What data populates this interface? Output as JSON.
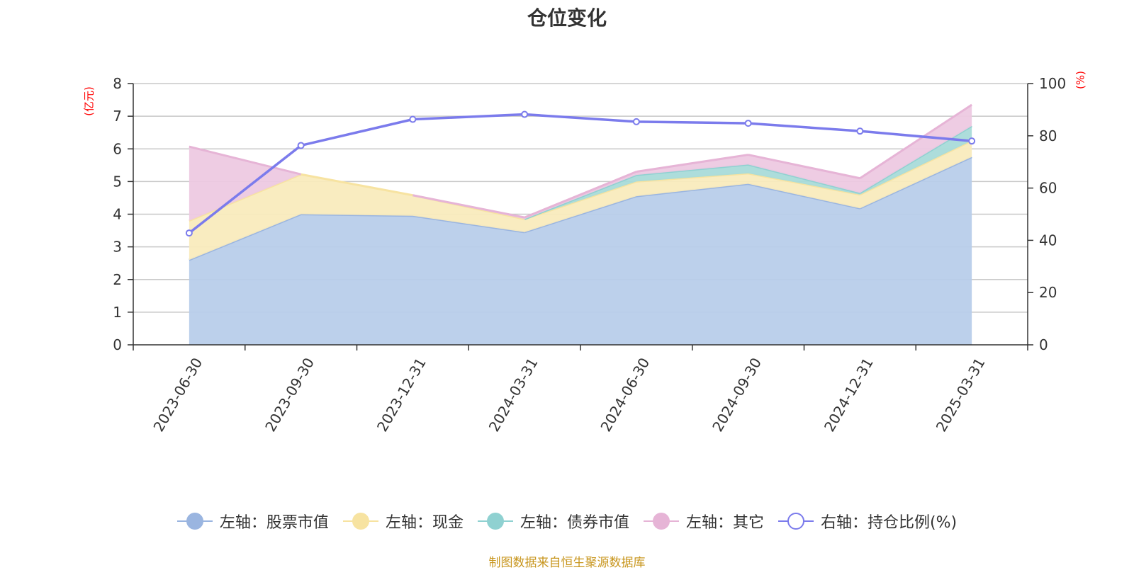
{
  "title": "仓位变化",
  "source_note": "制图数据来自恒生聚源数据库",
  "chart_data": {
    "type": "area",
    "categories": [
      "2023-06-30",
      "2023-09-30",
      "2023-12-31",
      "2024-03-31",
      "2024-06-30",
      "2024-09-30",
      "2024-12-31",
      "2025-03-31"
    ],
    "left_axis": {
      "unit": "(亿元)",
      "range": [
        0,
        8
      ],
      "ticks": [
        0,
        1,
        2,
        3,
        4,
        5,
        6,
        7,
        8
      ]
    },
    "right_axis": {
      "unit": "(%)",
      "range": [
        0,
        100
      ],
      "ticks": [
        0,
        20,
        40,
        60,
        80,
        100
      ]
    },
    "stacked": true,
    "series": [
      {
        "name": "左轴：股票市值",
        "axis": "left",
        "color": "#9ab5e0",
        "fill": "#b8cdea",
        "values": [
          2.6,
          4.0,
          3.95,
          3.45,
          4.55,
          4.93,
          4.18,
          5.75
        ]
      },
      {
        "name": "左轴：现金",
        "axis": "left",
        "color": "#f7e3a1",
        "fill": "#f9ebbd",
        "values": [
          1.2,
          1.22,
          0.63,
          0.4,
          0.45,
          0.32,
          0.42,
          0.5
        ]
      },
      {
        "name": "左轴：债券市值",
        "axis": "left",
        "color": "#8fd1d1",
        "fill": "#a9dbd9",
        "values": [
          0,
          0,
          0,
          0,
          0.2,
          0.27,
          0.05,
          0.45
        ]
      },
      {
        "name": "左轴：其它",
        "axis": "left",
        "color": "#e6b4d6",
        "fill": "#edc9e1",
        "values": [
          2.27,
          0.0,
          0.0,
          0.05,
          0.1,
          0.3,
          0.45,
          0.65
        ]
      },
      {
        "name": "右轴：持仓比例(%)",
        "axis": "right",
        "type": "line",
        "color": "#7b7bec",
        "values": [
          42.8,
          76.3,
          86.3,
          88.2,
          85.4,
          84.8,
          81.8,
          78.0
        ]
      }
    ],
    "legend_position": "bottom",
    "grid": true
  }
}
